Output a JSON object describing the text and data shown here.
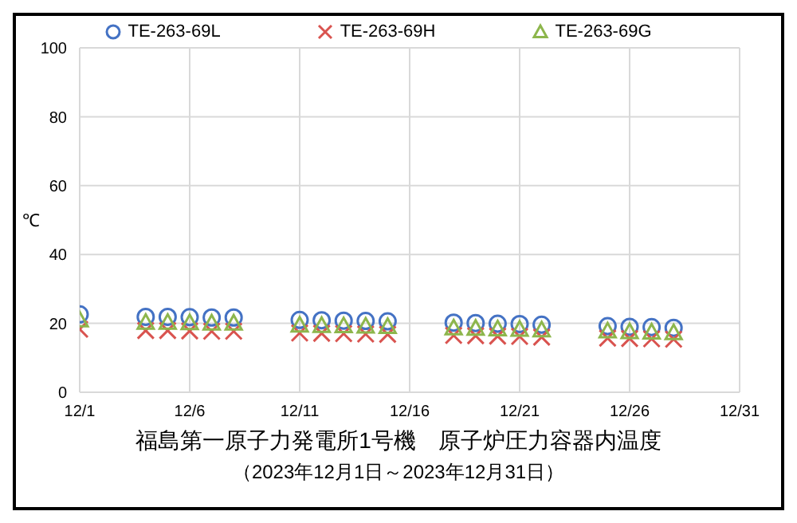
{
  "chart_data": {
    "type": "scatter",
    "title": "福島第一原子力発電所1号機　原子炉圧力容器内温度",
    "subtitle": "（2023年12月1日～2023年12月31日）",
    "ylabel": "℃",
    "x": [
      "2023-12-01",
      "2023-12-04",
      "2023-12-05",
      "2023-12-06",
      "2023-12-07",
      "2023-12-08",
      "2023-12-11",
      "2023-12-12",
      "2023-12-13",
      "2023-12-14",
      "2023-12-15",
      "2023-12-18",
      "2023-12-19",
      "2023-12-20",
      "2023-12-21",
      "2023-12-22",
      "2023-12-25",
      "2023-12-26",
      "2023-12-27",
      "2023-12-28"
    ],
    "series": [
      {
        "name": "TE-263-69L",
        "color": "#4472c4",
        "marker": "circle",
        "values": [
          22.6,
          21.9,
          21.9,
          21.8,
          21.7,
          21.7,
          21.0,
          20.9,
          20.8,
          20.7,
          20.6,
          20.2,
          20.1,
          19.9,
          19.8,
          19.6,
          19.2,
          19.0,
          18.9,
          18.7
        ]
      },
      {
        "name": "TE-263-69H",
        "color": "#d9534f",
        "marker": "cross",
        "values": [
          18.3,
          17.9,
          17.9,
          17.8,
          17.7,
          17.7,
          17.2,
          17.1,
          17.0,
          16.9,
          16.8,
          16.5,
          16.4,
          16.3,
          16.2,
          16.0,
          15.7,
          15.6,
          15.5,
          15.4
        ]
      },
      {
        "name": "TE-263-69G",
        "color": "#8db64c",
        "marker": "triangle",
        "values": [
          21.0,
          20.3,
          20.3,
          20.2,
          20.1,
          20.1,
          19.5,
          19.4,
          19.3,
          19.2,
          19.1,
          18.7,
          18.6,
          18.4,
          18.3,
          18.1,
          17.8,
          17.6,
          17.5,
          17.3
        ]
      }
    ],
    "xlim": [
      "2023-12-01",
      "2023-12-31"
    ],
    "xticks": [
      {
        "value": "2023-12-01",
        "label": "12/1"
      },
      {
        "value": "2023-12-06",
        "label": "12/6"
      },
      {
        "value": "2023-12-11",
        "label": "12/11"
      },
      {
        "value": "2023-12-16",
        "label": "12/16"
      },
      {
        "value": "2023-12-21",
        "label": "12/21"
      },
      {
        "value": "2023-12-26",
        "label": "12/26"
      },
      {
        "value": "2023-12-31",
        "label": "12/31"
      }
    ],
    "ylim": [
      0,
      100
    ],
    "yticks": [
      0,
      20,
      40,
      60,
      80,
      100
    ],
    "grid": true,
    "legend": "top"
  }
}
